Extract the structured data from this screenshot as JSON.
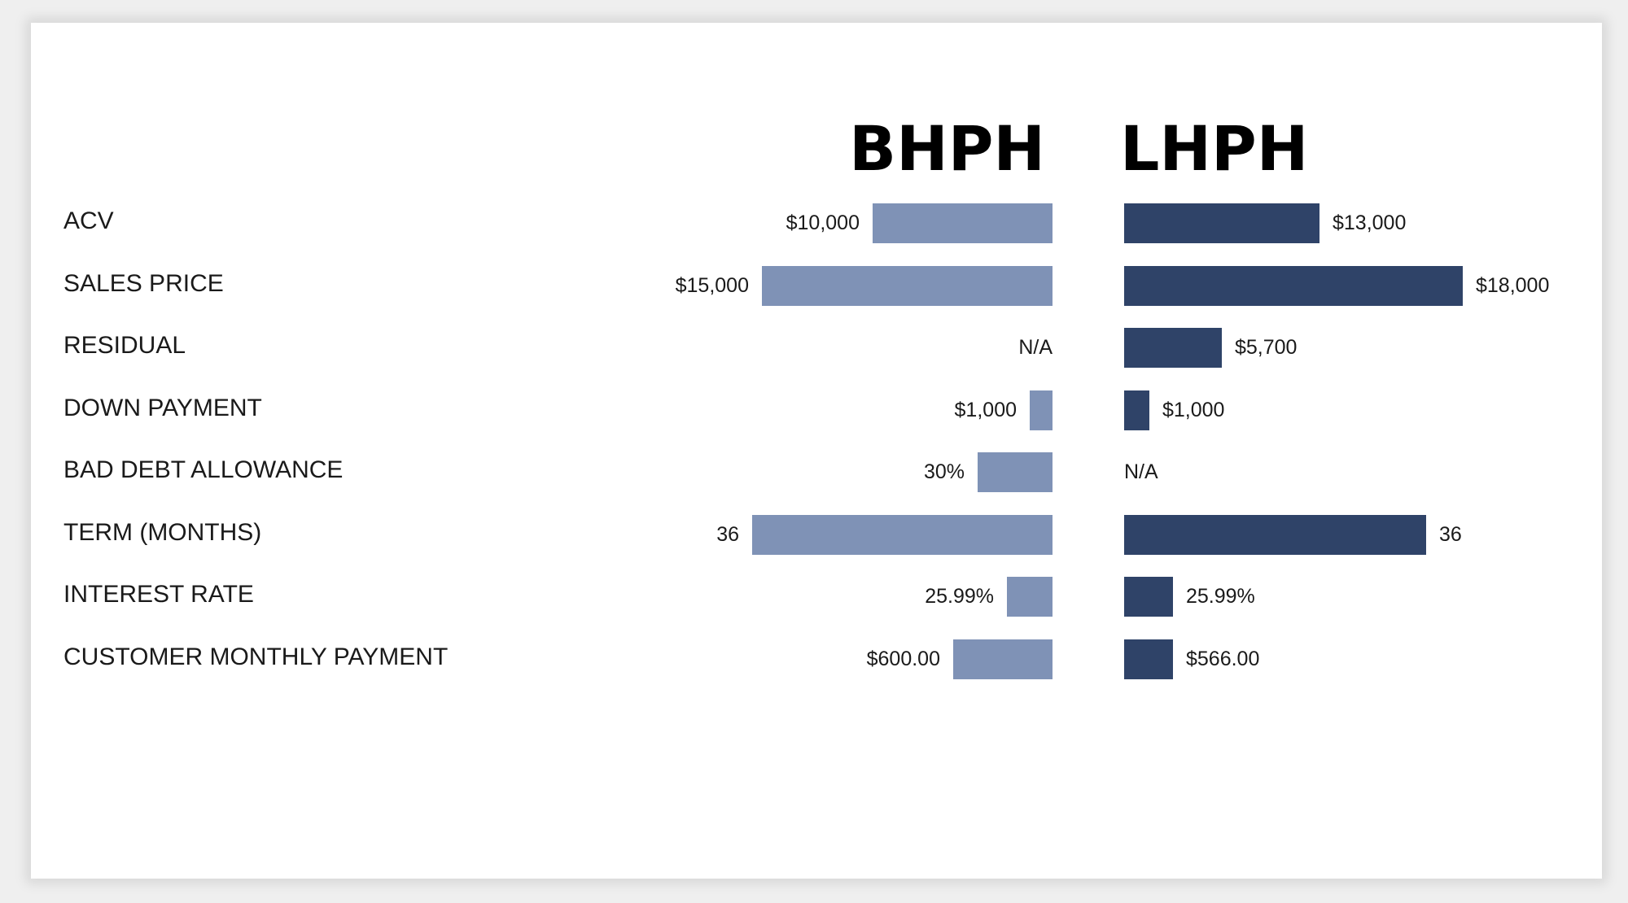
{
  "chart_data": {
    "type": "bar",
    "orientation": "horizontal-diverging",
    "series": [
      {
        "name": "BHPH",
        "color": "#7f92b6",
        "rows": [
          {
            "label": "$10,000",
            "value": 10000
          },
          {
            "label": "$15,000",
            "value": 15000
          },
          {
            "label": "N/A",
            "value": null
          },
          {
            "label": "$1,000",
            "value": 1000
          },
          {
            "label": "30%",
            "value": 30
          },
          {
            "label": "36",
            "value": 36
          },
          {
            "label": "25.99%",
            "value": 25.99
          },
          {
            "label": "$600.00",
            "value": 600
          }
        ]
      },
      {
        "name": "LHPH",
        "color": "#2f4368",
        "rows": [
          {
            "label": "$13,000",
            "value": 13000
          },
          {
            "label": "$18,000",
            "value": 18000
          },
          {
            "label": "$5,700",
            "value": 5700
          },
          {
            "label": "$1,000",
            "value": 1000
          },
          {
            "label": "N/A",
            "value": null
          },
          {
            "label": "36",
            "value": 36
          },
          {
            "label": "25.99%",
            "value": 25.99
          },
          {
            "label": "$566.00",
            "value": 566
          }
        ]
      }
    ],
    "categories": [
      "ACV",
      "SALES PRICE",
      "RESIDUAL",
      "DOWN PAYMENT",
      "BAD DEBT ALLOWANCE",
      "TERM (MONTHS)",
      "INTEREST RATE",
      "CUSTOMER MONTHLY PAYMENT"
    ],
    "bar_fraction": {
      "BHPH": [
        0.47,
        0.76,
        0,
        0.06,
        0.195,
        0.785,
        0.12,
        0.26
      ],
      "LHPH": [
        0.51,
        0.885,
        0.255,
        0.065,
        0,
        0.79,
        0.128,
        0.128
      ]
    }
  }
}
